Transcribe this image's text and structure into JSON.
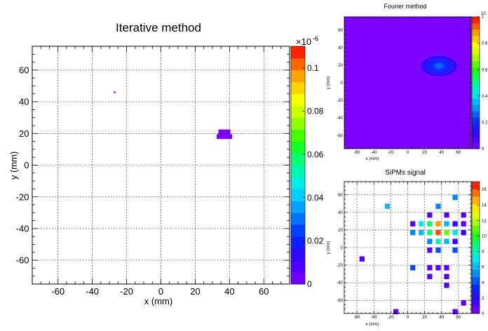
{
  "chart_data": [
    {
      "type": "heatmap",
      "title": "Iterative method",
      "xlabel": "x (mm)",
      "ylabel": "y (mm)",
      "xlim": [
        -75,
        75
      ],
      "ylim": [
        -75,
        75
      ],
      "xticks": [
        -60,
        -40,
        -20,
        0,
        20,
        40,
        60
      ],
      "yticks": [
        -60,
        -40,
        -20,
        0,
        20,
        40,
        60
      ],
      "grid": true,
      "colorbar": {
        "range": [
          0,
          1.1e-07
        ],
        "multiplier": "×10",
        "exponent": "-6",
        "ticks": [
          0,
          0.02,
          0.04,
          0.06,
          0.08,
          0.1
        ],
        "tick_labels": [
          "0",
          "0.02",
          "0.04",
          "0.06",
          "0.08",
          "0.1"
        ]
      },
      "cells": [
        {
          "x": -27,
          "y": 46,
          "w": 1,
          "h": 1,
          "value": 0.001
        },
        {
          "x": 37,
          "y": 20,
          "w": 7,
          "h": 5,
          "value": 0.002
        },
        {
          "x": 37,
          "y": 18,
          "w": 9,
          "h": 3,
          "value": 0.002
        }
      ]
    },
    {
      "type": "heatmap",
      "title": "Fourier method",
      "xlabel": "x (mm)",
      "ylabel": "y (mm)",
      "xlim": [
        -75,
        75
      ],
      "ylim": [
        -75,
        75
      ],
      "xticks": [
        -60,
        -40,
        -20,
        0,
        20,
        40,
        60
      ],
      "yticks": [
        -60,
        -40,
        -20,
        0,
        20,
        40,
        60
      ],
      "grid": false,
      "colorbar": {
        "range": [
          0,
          1
        ],
        "exponent": "10",
        "ticks": [
          0,
          0.2,
          0.4,
          0.6,
          0.8,
          1
        ],
        "tick_labels": [
          "0",
          "0.2",
          "0.4",
          "0.6",
          "0.8",
          "1"
        ]
      },
      "blob": {
        "x": 37,
        "y": 19,
        "levels": [
          0.05,
          0.1,
          0.15,
          0.2
        ]
      }
    },
    {
      "type": "heatmap",
      "title": "SiPMs signal",
      "xlabel": "x (mm)",
      "ylabel": "y (mm)",
      "xlim": [
        -75,
        75
      ],
      "ylim": [
        -75,
        75
      ],
      "xticks": [
        -60,
        -40,
        -20,
        0,
        20,
        40,
        60
      ],
      "yticks": [
        -60,
        -40,
        -20,
        0,
        20,
        40,
        60
      ],
      "grid": true,
      "colorbar": {
        "range": [
          0,
          17
        ],
        "ticks": [
          0,
          2,
          4,
          6,
          8,
          10,
          12,
          14,
          16
        ],
        "tick_labels": [
          "0",
          "2",
          "4",
          "6",
          "8",
          "10",
          "12",
          "14",
          "16"
        ]
      },
      "cells": [
        {
          "x": 56,
          "y": 57,
          "value": 5
        },
        {
          "x": -24,
          "y": 47,
          "value": 6
        },
        {
          "x": 36,
          "y": 47,
          "value": 5
        },
        {
          "x": 26,
          "y": 37,
          "value": 1
        },
        {
          "x": 46,
          "y": 37,
          "value": 1
        },
        {
          "x": 66,
          "y": 37,
          "value": 1
        },
        {
          "x": 6,
          "y": 27,
          "value": 1
        },
        {
          "x": 16,
          "y": 27,
          "value": 7
        },
        {
          "x": 26,
          "y": 27,
          "value": 9
        },
        {
          "x": 36,
          "y": 27,
          "value": 15
        },
        {
          "x": 46,
          "y": 27,
          "value": 6
        },
        {
          "x": 56,
          "y": 27,
          "value": 2
        },
        {
          "x": 66,
          "y": 27,
          "value": 1
        },
        {
          "x": 6,
          "y": 17,
          "value": 5
        },
        {
          "x": 16,
          "y": 17,
          "value": 6
        },
        {
          "x": 26,
          "y": 17,
          "value": 9
        },
        {
          "x": 36,
          "y": 17,
          "value": 16
        },
        {
          "x": 46,
          "y": 17,
          "value": 11
        },
        {
          "x": 56,
          "y": 17,
          "value": 7
        },
        {
          "x": 66,
          "y": 17,
          "value": 2
        },
        {
          "x": 26,
          "y": 7,
          "value": 5
        },
        {
          "x": 36,
          "y": 7,
          "value": 8
        },
        {
          "x": 46,
          "y": 7,
          "value": 6
        },
        {
          "x": 56,
          "y": 7,
          "value": 2
        },
        {
          "x": 26,
          "y": -3,
          "value": 1
        },
        {
          "x": 36,
          "y": -3,
          "value": 4
        },
        {
          "x": 56,
          "y": -3,
          "value": 4
        },
        {
          "x": -54,
          "y": -13,
          "value": 1
        },
        {
          "x": 6,
          "y": -23,
          "value": 4
        },
        {
          "x": 26,
          "y": -23,
          "value": 1
        },
        {
          "x": 36,
          "y": -23,
          "value": 1
        },
        {
          "x": 46,
          "y": -23,
          "value": 1
        },
        {
          "x": 26,
          "y": -33,
          "value": 1
        },
        {
          "x": 46,
          "y": -33,
          "value": 1
        },
        {
          "x": 46,
          "y": -43,
          "value": 1
        },
        {
          "x": 66,
          "y": -63,
          "value": 1
        },
        {
          "x": -14,
          "y": -73,
          "value": 1
        },
        {
          "x": 56,
          "y": -73,
          "value": 1
        }
      ]
    }
  ]
}
